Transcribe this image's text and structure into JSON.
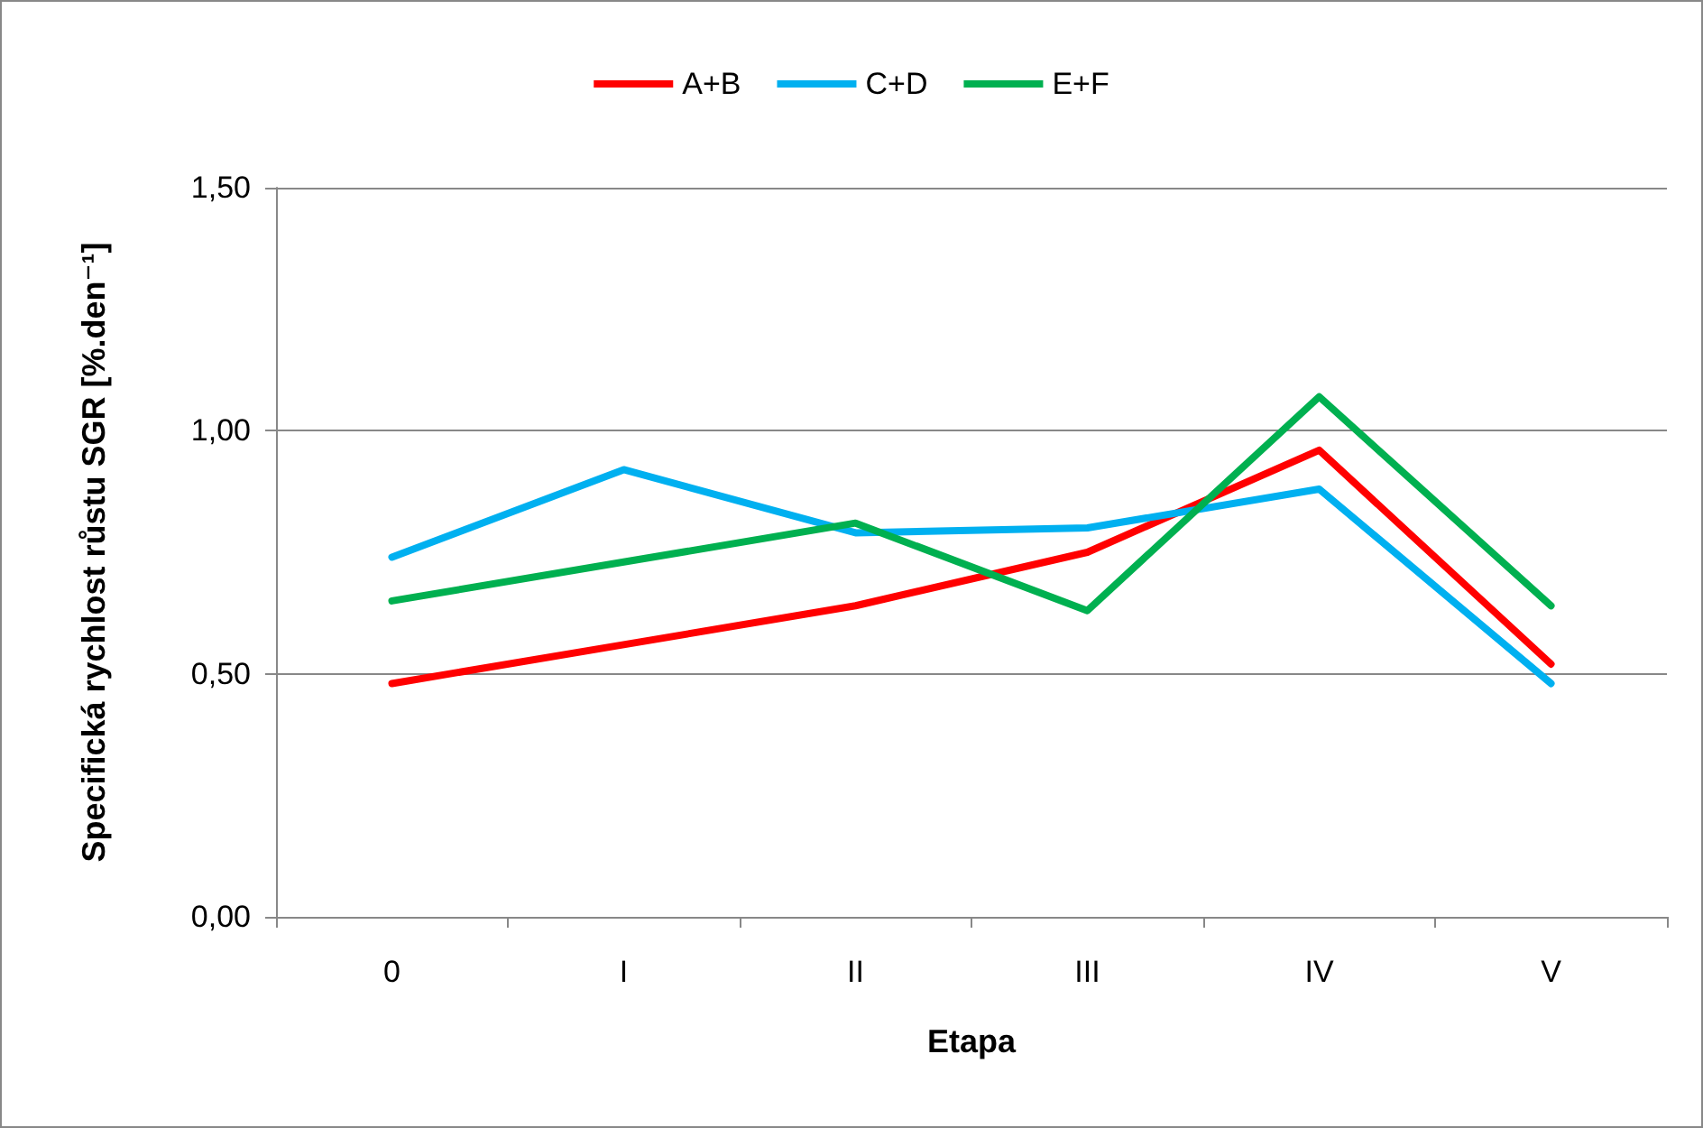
{
  "chart_data": {
    "type": "line",
    "xlabel": "Etapa",
    "ylabel": "Specifická rychlost růstu SGR [%.den⁻¹]",
    "categories": [
      "0",
      "I",
      "II",
      "III",
      "IV",
      "V"
    ],
    "series": [
      {
        "name": "A+B",
        "color": "#ff0000",
        "values": [
          0.48,
          0.56,
          0.64,
          0.75,
          0.96,
          0.52
        ]
      },
      {
        "name": "C+D",
        "color": "#00b0f0",
        "values": [
          0.74,
          0.92,
          0.79,
          0.8,
          0.88,
          0.48
        ]
      },
      {
        "name": "E+F",
        "color": "#00b050",
        "values": [
          0.65,
          0.73,
          0.81,
          0.63,
          1.07,
          0.64
        ]
      }
    ],
    "ylim": [
      0,
      1.5
    ],
    "yticks": [
      {
        "value": 0,
        "label": "0,00"
      },
      {
        "value": 0.5,
        "label": "0,50"
      },
      {
        "value": 1,
        "label": "1,00"
      },
      {
        "value": 1.5,
        "label": "1,50"
      }
    ],
    "grid": "y",
    "legend": "top",
    "marker": "none",
    "line_style": "solid"
  }
}
